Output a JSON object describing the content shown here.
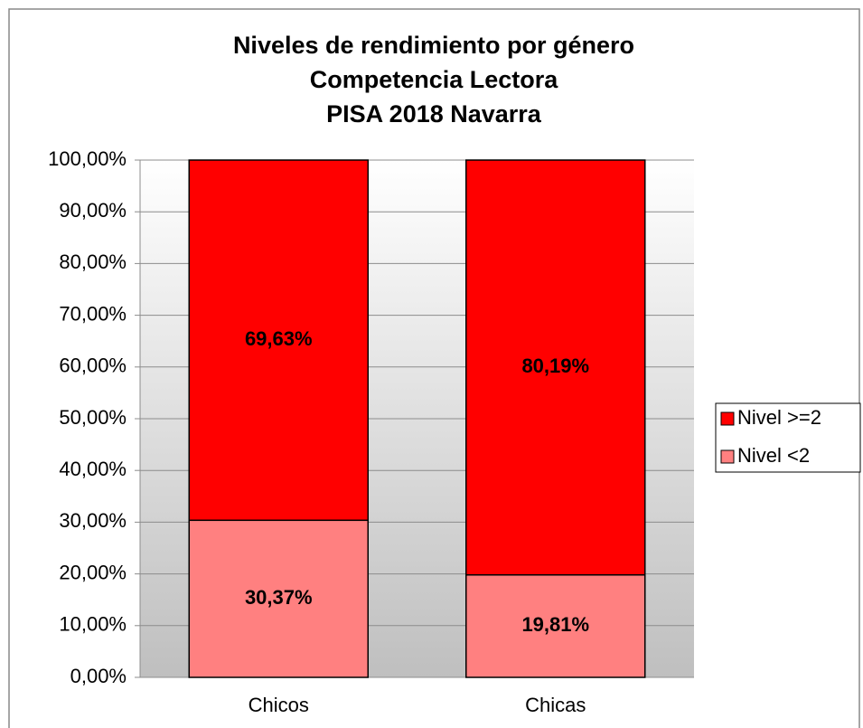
{
  "chart_data": {
    "type": "stacked_bar",
    "title": [
      "Niveles de rendimiento por género",
      "Competencia Lectora",
      "PISA 2018 Navarra"
    ],
    "categories": [
      "Chicos",
      "Chicas"
    ],
    "series": [
      {
        "name": "Nivel <2",
        "color": "#ff8080",
        "values": [
          30.37,
          19.81
        ],
        "value_labels": [
          "30,37%",
          "19,81%"
        ]
      },
      {
        "name": "Nivel >=2",
        "color": "#ff0000",
        "values": [
          69.63,
          80.19
        ],
        "value_labels": [
          "69,63%",
          "80,19%"
        ]
      }
    ],
    "ylim": [
      0,
      100
    ],
    "yticks": [
      {
        "value": 0,
        "label": "0,00%"
      },
      {
        "value": 10,
        "label": "10,00%"
      },
      {
        "value": 20,
        "label": "20,00%"
      },
      {
        "value": 30,
        "label": "30,00%"
      },
      {
        "value": 40,
        "label": "40,00%"
      },
      {
        "value": 50,
        "label": "50,00%"
      },
      {
        "value": 60,
        "label": "60,00%"
      },
      {
        "value": 70,
        "label": "70,00%"
      },
      {
        "value": 80,
        "label": "80,00%"
      },
      {
        "value": 90,
        "label": "90,00%"
      },
      {
        "value": 100,
        "label": "100,00%"
      }
    ],
    "grid": true,
    "legend": "right"
  }
}
